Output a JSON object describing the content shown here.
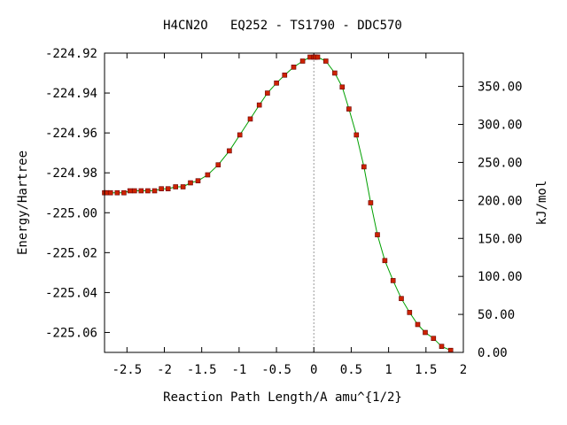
{
  "chart_data": {
    "type": "line",
    "title": "H4CN2O   EQ252 - TS1790 - DDC570",
    "xlabel": "Reaction Path Length/A amu^{1/2}",
    "ylabel": "Energy/Hartree",
    "y2label": "kJ/mol",
    "xlim": [
      -2.8,
      2.0
    ],
    "ylim": [
      -225.07,
      -224.92
    ],
    "y2lim": [
      0.0,
      393.8
    ],
    "xticks": [
      "-2.5",
      "-2",
      "-1.5",
      "-1",
      "-0.5",
      "0",
      "0.5",
      "1",
      "1.5",
      "2"
    ],
    "xtick_values": [
      -2.5,
      -2.0,
      -1.5,
      -1.0,
      -0.5,
      0.0,
      0.5,
      1.0,
      1.5,
      2.0
    ],
    "yticks": [
      "-224.92",
      "-224.94",
      "-224.96",
      "-224.98",
      "-225.00",
      "-225.02",
      "-225.04",
      "-225.06"
    ],
    "ytick_values": [
      -224.92,
      -224.94,
      -224.96,
      -224.98,
      -225.0,
      -225.02,
      -225.04,
      -225.06
    ],
    "y2ticks": [
      "350.00",
      "300.00",
      "250.00",
      "200.00",
      "150.00",
      "100.00",
      "50.00",
      "0.00"
    ],
    "y2tick_values": [
      350,
      300,
      250,
      200,
      150,
      100,
      50,
      0
    ],
    "vline_x": 0.0,
    "line_color": "#00a000",
    "marker_color": "#cc2200",
    "marker_edge_color": "#660000",
    "series": [
      {
        "x": [
          -2.8,
          -2.77,
          -2.72,
          -2.63,
          -2.54,
          -2.46,
          -2.4,
          -2.31,
          -2.22,
          -2.13,
          -2.04,
          -1.95,
          -1.85,
          -1.75,
          -1.65,
          -1.55,
          -1.42,
          -1.28,
          -1.13,
          -0.99,
          -0.85,
          -0.73,
          -0.62,
          -0.5,
          -0.39,
          -0.27,
          -0.15,
          -0.05,
          0.0,
          0.02,
          0.05,
          0.16,
          0.28,
          0.38,
          0.47,
          0.57,
          0.67,
          0.76,
          0.85,
          0.95,
          1.06,
          1.17,
          1.28,
          1.39,
          1.49,
          1.6,
          1.71,
          1.83
        ],
        "y": [
          -224.99,
          -224.99,
          -224.99,
          -224.99,
          -224.99,
          -224.989,
          -224.989,
          -224.989,
          -224.989,
          -224.989,
          -224.988,
          -224.988,
          -224.987,
          -224.987,
          -224.985,
          -224.984,
          -224.981,
          -224.976,
          -224.969,
          -224.961,
          -224.953,
          -224.946,
          -224.94,
          -224.935,
          -224.931,
          -224.927,
          -224.924,
          -224.922,
          -224.922,
          -224.922,
          -224.922,
          -224.924,
          -224.93,
          -224.937,
          -224.948,
          -224.961,
          -224.977,
          -224.995,
          -225.011,
          -225.024,
          -225.034,
          -225.043,
          -225.05,
          -225.056,
          -225.06,
          -225.063,
          -225.067,
          -225.069
        ]
      }
    ]
  }
}
